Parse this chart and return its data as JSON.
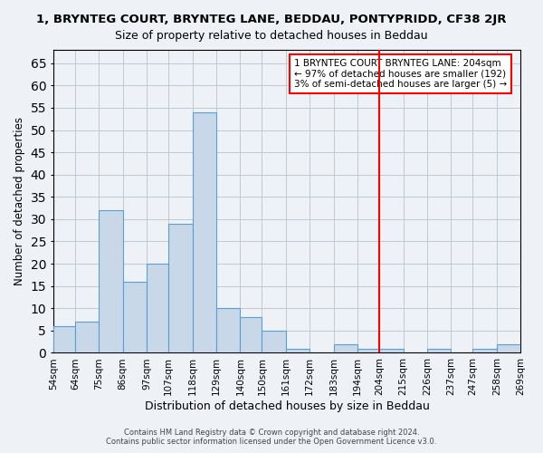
{
  "title": "1, BRYNTEG COURT, BRYNTEG LANE, BEDDAU, PONTYPRIDD, CF38 2JR",
  "subtitle": "Size of property relative to detached houses in Beddau",
  "xlabel": "Distribution of detached houses by size in Beddau",
  "ylabel": "Number of detached properties",
  "footer_line1": "Contains HM Land Registry data © Crown copyright and database right 2024.",
  "footer_line2": "Contains public sector information licensed under the Open Government Licence v3.0.",
  "bin_labels": [
    "54sqm",
    "64sqm",
    "75sqm",
    "86sqm",
    "97sqm",
    "107sqm",
    "118sqm",
    "129sqm",
    "140sqm",
    "150sqm",
    "161sqm",
    "172sqm",
    "183sqm",
    "194sqm",
    "204sqm",
    "215sqm",
    "226sqm",
    "237sqm",
    "247sqm",
    "258sqm",
    "269sqm"
  ],
  "bin_edges": [
    54,
    64,
    75,
    86,
    97,
    107,
    118,
    129,
    140,
    150,
    161,
    172,
    183,
    194,
    204,
    215,
    226,
    237,
    247,
    258,
    269
  ],
  "bar_heights": [
    6,
    7,
    32,
    16,
    20,
    29,
    54,
    10,
    8,
    5,
    1,
    0,
    2,
    1,
    1,
    0,
    1,
    0,
    1,
    2
  ],
  "bar_color": "#c8d8e8",
  "bar_edge_color": "#5a9fd4",
  "grid_color": "#c0c8d0",
  "bg_color": "#eef2f7",
  "vline_x": 204,
  "vline_color": "red",
  "ylim": [
    0,
    68
  ],
  "yticks": [
    0,
    5,
    10,
    15,
    20,
    25,
    30,
    35,
    40,
    45,
    50,
    55,
    60,
    65
  ],
  "annotation_title": "1 BRYNTEG COURT BRYNTEG LANE: 204sqm",
  "annotation_line2": "← 97% of detached houses are smaller (192)",
  "annotation_line3": "3% of semi-detached houses are larger (5) →",
  "annotation_box_color": "white",
  "annotation_border_color": "red"
}
